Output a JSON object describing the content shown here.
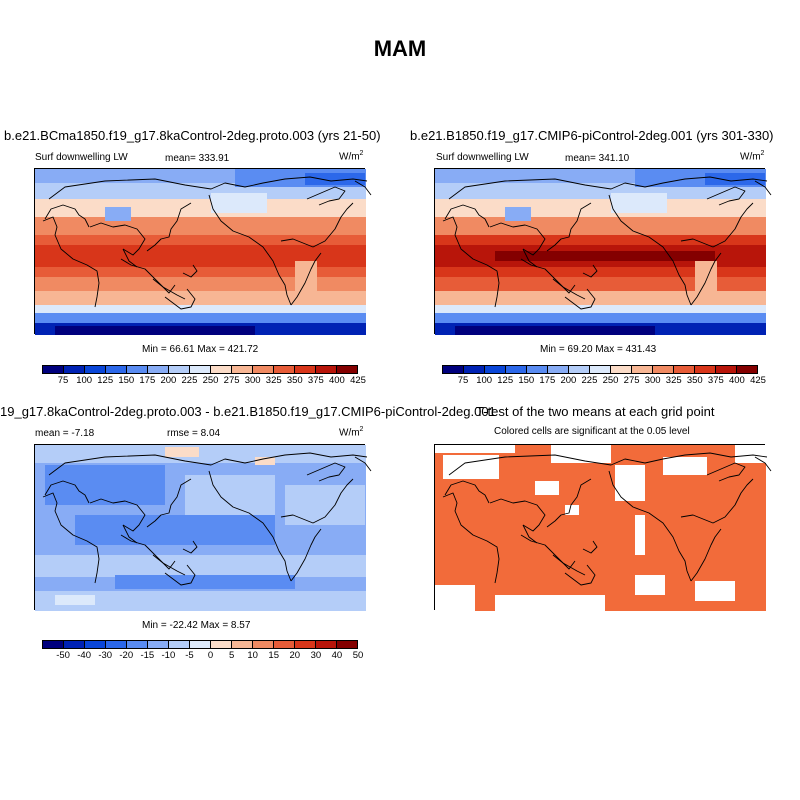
{
  "title": "MAM",
  "panel1": {
    "title": "b.e21.BCma1850.f19_g17.8kaControl-2deg.proto.003 (yrs 21-50)",
    "variable": "Surf downwelling LW",
    "mean": "mean= 333.91",
    "units_base": "W/m",
    "units_exp": "2",
    "minmax": "Min =  66.61 Max = 421.72"
  },
  "panel2": {
    "title": "b.e21.B1850.f19_g17.CMIP6-piControl-2deg.001 (yrs 301-330)",
    "variable": "Surf downwelling LW",
    "mean": "mean= 341.10",
    "units_base": "W/m",
    "units_exp": "2",
    "minmax": "Min =  69.20 Max = 431.43"
  },
  "panel3": {
    "title": "19_g17.8kaControl-2deg.proto.003 - b.e21.B1850.f19_g17.CMIP6-piControl-2deg.001",
    "mean": "mean =  -7.18",
    "rmse": "rmse =   8.04",
    "units_base": "W/m",
    "units_exp": "2",
    "minmax": "Min = -22.42 Max =   8.57"
  },
  "panel4": {
    "title": "T-test of the two means at each grid point",
    "subtitle": "Colored cells are significant at the 0.05 level"
  },
  "colorbar_abs": {
    "labels": [
      "75",
      "100",
      "125",
      "150",
      "175",
      "200",
      "225",
      "250",
      "275",
      "300",
      "325",
      "350",
      "375",
      "400",
      "425"
    ],
    "colors": [
      "#00007d",
      "#0022b4",
      "#0a46d8",
      "#2c68ea",
      "#5a8cf2",
      "#88acf5",
      "#b4cdf8",
      "#dce9fb",
      "#fbdcc8",
      "#f7b694",
      "#f08a62",
      "#e75c38",
      "#d8361a",
      "#b8150a",
      "#840000"
    ]
  },
  "colorbar_diff": {
    "labels": [
      "-50",
      "-40",
      "-30",
      "-20",
      "-15",
      "-10",
      "-5",
      "0",
      "5",
      "10",
      "15",
      "20",
      "30",
      "40",
      "50"
    ],
    "colors": [
      "#00007d",
      "#0022b4",
      "#0a46d8",
      "#2c68ea",
      "#5a8cf2",
      "#88acf5",
      "#b4cdf8",
      "#dce9fb",
      "#fbdcc8",
      "#f7b694",
      "#f08a62",
      "#e75c38",
      "#d8361a",
      "#b8150a",
      "#840000"
    ]
  },
  "ttest_color": "#f26b3a",
  "land_line_color": "#000000"
}
